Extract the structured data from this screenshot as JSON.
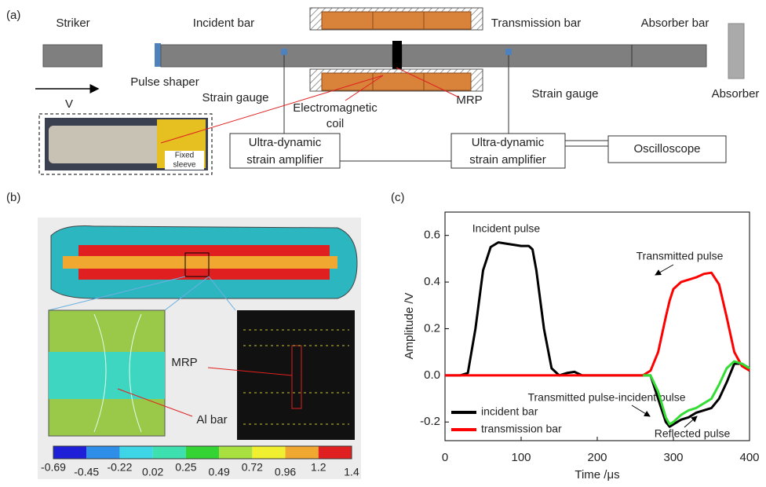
{
  "panel_a": {
    "label": "(a)",
    "striker": "Striker",
    "incident_bar": "Incident bar",
    "transmission_bar": "Transmission bar",
    "absorber_bar": "Absorber bar",
    "pulse_shaper": "Pulse shaper",
    "velocity": "V",
    "strain_gauge_left": "Strain gauge",
    "strain_gauge_right": "Strain gauge",
    "coil": [
      "Electromagnetic",
      "coil"
    ],
    "mrp": "MRP",
    "absorber": "Absorber",
    "amplifier_left": [
      "Ultra-dynamic",
      "strain amplifier"
    ],
    "amplifier_right": [
      "Ultra-dynamic",
      "strain amplifier"
    ],
    "oscilloscope": "Oscilloscope",
    "photo_label": [
      "Fixed",
      "sleeve"
    ]
  },
  "panel_b": {
    "label": "(b)",
    "mrp": "MRP",
    "al_bar": "Al bar",
    "colorbar": {
      "ticks": [
        -0.69,
        -0.45,
        -0.22,
        0.02,
        0.25,
        0.49,
        0.72,
        0.96,
        1.2,
        1.4
      ],
      "colors": [
        "#1f1fd8",
        "#2f8fe8",
        "#3ed6e6",
        "#3ee0b0",
        "#35d435",
        "#a8e040",
        "#f0f030",
        "#f0a830",
        "#e02020"
      ]
    }
  },
  "chart_data": {
    "type": "line",
    "label": "(c)",
    "x_label": "Time /μs",
    "y_label": "Amplitude /V",
    "x": [
      0,
      20,
      30,
      40,
      50,
      60,
      70,
      80,
      90,
      100,
      110,
      115,
      120,
      130,
      140,
      150,
      160,
      170,
      180,
      200,
      220,
      240,
      260,
      270,
      280,
      290,
      295,
      300,
      310,
      320,
      330,
      340,
      350,
      360,
      370,
      380,
      390,
      400
    ],
    "series": [
      {
        "name": "incident bar",
        "color": "#000000",
        "values": [
          0,
          0,
          0.01,
          0.2,
          0.45,
          0.55,
          0.57,
          0.565,
          0.56,
          0.555,
          0.555,
          0.54,
          0.45,
          0.2,
          0.03,
          0,
          0.01,
          0.015,
          0,
          0,
          0,
          0,
          0,
          0,
          -0.1,
          -0.2,
          -0.22,
          -0.21,
          -0.19,
          -0.18,
          -0.16,
          -0.15,
          -0.14,
          -0.1,
          -0.03,
          0.05,
          0.05,
          0.03
        ]
      },
      {
        "name": "transmission bar",
        "color": "#ff0000",
        "values": [
          0,
          0,
          0,
          0,
          0,
          0,
          0,
          0,
          0,
          0,
          0,
          0,
          0,
          0,
          0,
          0,
          0,
          0,
          0,
          0,
          0,
          0,
          0,
          0.02,
          0.1,
          0.25,
          0.32,
          0.37,
          0.4,
          0.41,
          0.42,
          0.435,
          0.44,
          0.39,
          0.25,
          0.1,
          0.04,
          0.02
        ]
      },
      {
        "color": "#33dd33",
        "values": [
          null,
          null,
          null,
          null,
          null,
          null,
          null,
          null,
          null,
          null,
          null,
          null,
          null,
          null,
          null,
          null,
          null,
          null,
          null,
          null,
          null,
          null,
          0,
          0,
          -0.07,
          -0.18,
          -0.21,
          -0.2,
          -0.17,
          -0.15,
          -0.14,
          -0.12,
          -0.1,
          -0.04,
          0.03,
          0.06,
          0.05,
          0.03
        ]
      }
    ],
    "xlim": [
      0,
      400
    ],
    "xticks": [
      0,
      100,
      200,
      300,
      400
    ],
    "ylim": [
      -0.28,
      0.7
    ],
    "yticks": [
      -0.2,
      {
        "value": 0,
        "label": "0.0"
      },
      0.2,
      0.4,
      0.6
    ],
    "legend": "lower left",
    "annotations": [
      "Incident pulse",
      "Transmitted pulse",
      "Transmitted pulse-incident pulse",
      "Reflected pulse"
    ]
  }
}
